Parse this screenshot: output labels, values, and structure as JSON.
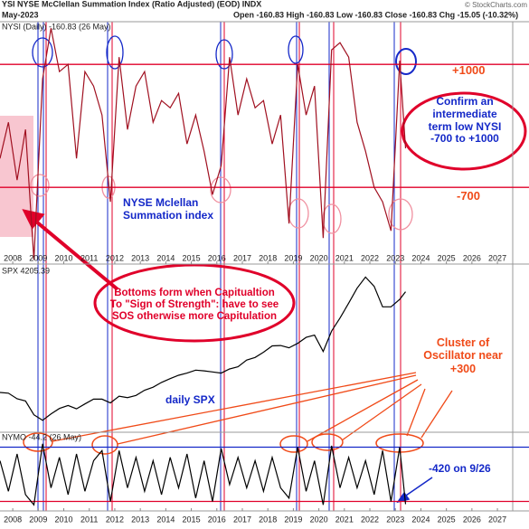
{
  "header": {
    "title": "YSI NYSE McClellan Summation Index (Ratio Adjusted) (EOD) INDX",
    "date": "May-2023",
    "quote": "Open -160.83 High -160.83 Low -160.83 Close -160.83 Chg -15.05 (-10.32%)",
    "source": "© StockCharts.com"
  },
  "annotations": {
    "plus_1000": "+1000",
    "minus_700": "-700",
    "confirm": "Confirm an intermediate term low NYSI -700 to +1000",
    "nysi_label": "NYSE Mclellan Summation index",
    "bottoms": "Bottoms form when Capitualtion To \"Sign of Strength\": have to see SOS otherwise more Capitulation",
    "daily_spx": "daily SPX",
    "cluster": "Cluster of Oscillator near +300",
    "minus_420": "-420 on 9/26"
  },
  "chart_data": [
    {
      "type": "line",
      "label": "NYSI (Daily) -160.83 (26 May)",
      "color": "#a01020",
      "x": [
        2007.5,
        2007.83,
        2008.17,
        2008.5,
        2008.83,
        2009.17,
        2009.5,
        2009.83,
        2010.17,
        2010.5,
        2010.83,
        2011.17,
        2011.5,
        2011.83,
        2012.17,
        2012.5,
        2012.83,
        2013.17,
        2013.5,
        2013.83,
        2014.17,
        2014.5,
        2014.83,
        2015.17,
        2015.5,
        2015.83,
        2016.17,
        2016.5,
        2016.83,
        2017.17,
        2017.5,
        2017.83,
        2018.17,
        2018.5,
        2018.83,
        2019.17,
        2019.5,
        2019.83,
        2020.17,
        2020.5,
        2020.83,
        2021.17,
        2021.5,
        2021.83,
        2022.17,
        2022.5,
        2022.83,
        2023.17,
        2023.4
      ],
      "values": [
        -300,
        200,
        -600,
        100,
        -1700,
        800,
        1500,
        900,
        1000,
        -300,
        900,
        700,
        300,
        -900,
        1100,
        100,
        700,
        900,
        200,
        500,
        400,
        600,
        -100,
        300,
        -200,
        -800,
        -400,
        1100,
        300,
        800,
        400,
        500,
        -100,
        300,
        -1200,
        1000,
        300,
        700,
        -1400,
        1200,
        1300,
        1100,
        200,
        -200,
        -700,
        -900,
        -1300,
        1050,
        -160.83
      ],
      "xlim": [
        2007.5,
        2027.6
      ],
      "ylim": [
        -1760,
        1590
      ],
      "xticks": [
        2008,
        2009,
        2010,
        2011,
        2012,
        2013,
        2014,
        2015,
        2016,
        2017,
        2018,
        2019,
        2020,
        2021,
        2022,
        2023,
        2024,
        2025,
        2026,
        2027
      ],
      "ref_lines": [
        {
          "value": 1000,
          "color": "#e0002a"
        },
        {
          "value": -700,
          "color": "#e0002a"
        }
      ]
    },
    {
      "type": "line",
      "label": "SPX 4205.39",
      "color": "#000000",
      "x": [
        2007.5,
        2007.83,
        2008.17,
        2008.5,
        2008.83,
        2009.17,
        2009.5,
        2009.83,
        2010.17,
        2010.5,
        2010.83,
        2011.17,
        2011.5,
        2011.83,
        2012.17,
        2012.5,
        2012.83,
        2013.17,
        2013.5,
        2013.83,
        2014.17,
        2014.5,
        2014.83,
        2015.17,
        2015.5,
        2015.83,
        2016.17,
        2016.5,
        2016.83,
        2017.17,
        2017.5,
        2017.83,
        2018.17,
        2018.5,
        2018.83,
        2019.17,
        2019.5,
        2019.83,
        2020.17,
        2020.5,
        2020.83,
        2021.17,
        2021.5,
        2021.83,
        2022.17,
        2022.5,
        2022.83,
        2023.17,
        2023.4
      ],
      "values": [
        1500,
        1480,
        1330,
        1270,
        900,
        750,
        920,
        1070,
        1150,
        1060,
        1190,
        1320,
        1320,
        1220,
        1400,
        1360,
        1420,
        1560,
        1640,
        1770,
        1870,
        1960,
        2020,
        2100,
        2080,
        2050,
        2020,
        2130,
        2190,
        2370,
        2440,
        2580,
        2750,
        2760,
        2700,
        2820,
        2980,
        3040,
        2600,
        3150,
        3500,
        3900,
        4300,
        4600,
        4350,
        3800,
        3800,
        4000,
        4205.39
      ],
      "xlim": [
        2007.5,
        2027.6
      ],
      "ylim": [
        430,
        4950
      ]
    },
    {
      "type": "line",
      "label": "NYMO -44.2 (26 May)",
      "color": "#000000",
      "x": [
        2007.5,
        2007.83,
        2008.17,
        2008.5,
        2008.83,
        2009.17,
        2009.5,
        2009.83,
        2010.17,
        2010.5,
        2010.83,
        2011.17,
        2011.5,
        2011.83,
        2012.17,
        2012.5,
        2012.83,
        2013.17,
        2013.5,
        2013.83,
        2014.17,
        2014.5,
        2014.83,
        2015.17,
        2015.5,
        2015.83,
        2016.17,
        2016.5,
        2016.83,
        2017.17,
        2017.5,
        2017.83,
        2018.17,
        2018.5,
        2018.83,
        2019.17,
        2019.5,
        2019.83,
        2020.17,
        2020.5,
        2020.83,
        2021.17,
        2021.5,
        2021.83,
        2022.17,
        2022.5,
        2022.83,
        2023.17,
        2023.4
      ],
      "values": [
        20,
        -25,
        30,
        -30,
        -45,
        45,
        -20,
        25,
        -30,
        30,
        -25,
        20,
        35,
        -40,
        35,
        -20,
        25,
        -25,
        20,
        -30,
        25,
        -20,
        30,
        -35,
        20,
        -40,
        38,
        -15,
        25,
        -20,
        20,
        -25,
        25,
        -20,
        -35,
        40,
        -25,
        20,
        -45,
        42,
        -20,
        25,
        -20,
        20,
        -30,
        35,
        -40,
        40,
        -44.2
      ],
      "xlim": [
        2007.5,
        2027.6
      ],
      "ylim": [
        -54,
        62
      ],
      "xticks": [
        2008,
        2009,
        2010,
        2011,
        2012,
        2013,
        2014,
        2015,
        2016,
        2017,
        2018,
        2019,
        2020,
        2021,
        2022,
        2023,
        2024,
        2025,
        2026,
        2027
      ],
      "ref_lines": [
        {
          "value": 40,
          "color": "#1428c8"
        },
        {
          "value": -40,
          "color": "#e0002a"
        }
      ]
    }
  ]
}
